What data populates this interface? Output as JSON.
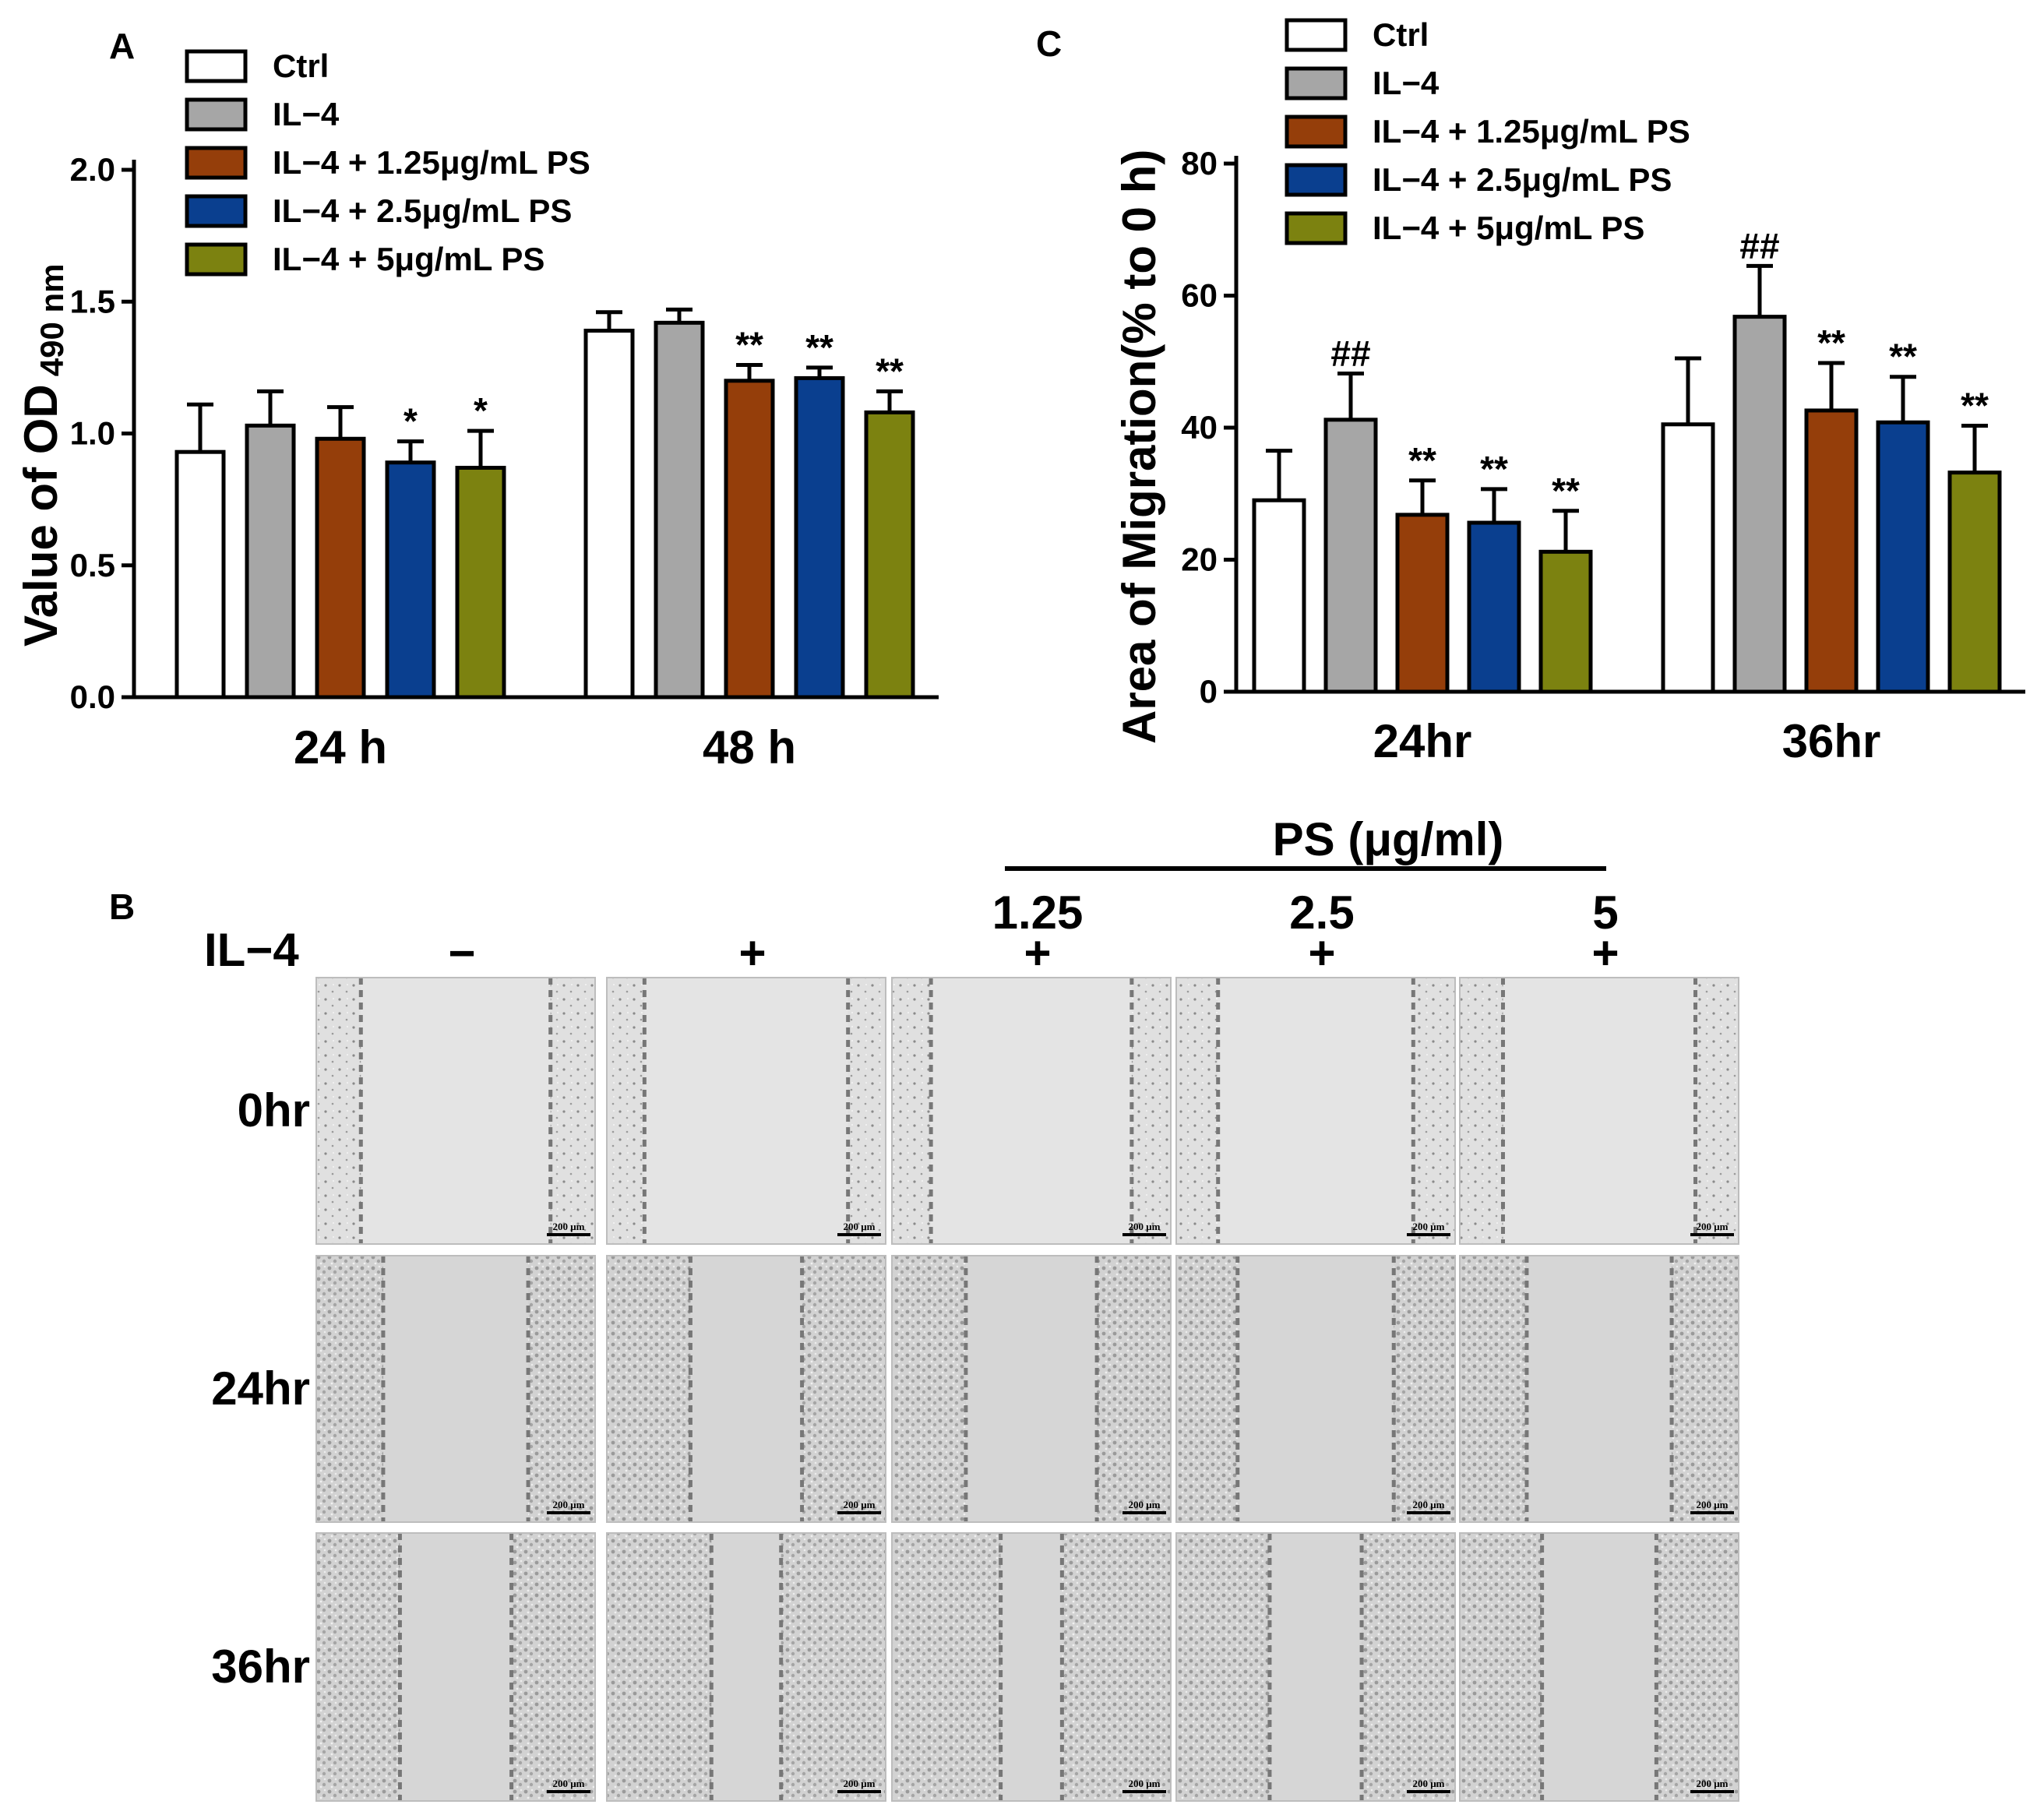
{
  "panel_a": {
    "letter": "A",
    "chart_data": {
      "type": "bar",
      "title": "",
      "ylabel_main": "Value of OD",
      "ylabel_sub": "490 nm",
      "xlabel": "",
      "ylim": [
        0,
        2.0
      ],
      "yticks": [
        "0.0",
        "0.5",
        "1.0",
        "1.5",
        "2.0"
      ],
      "categories": [
        "24 h",
        "48 h"
      ],
      "series": [
        {
          "name": "Ctrl",
          "color": "#ffffff",
          "values": [
            0.93,
            1.39
          ],
          "errors": [
            0.18,
            0.07
          ],
          "sig": [
            "",
            ""
          ]
        },
        {
          "name": "IL−4",
          "color": "#a6a6a6",
          "values": [
            1.03,
            1.42
          ],
          "errors": [
            0.13,
            0.05
          ],
          "sig": [
            "",
            ""
          ]
        },
        {
          "name": "IL−4 + 1.25μg/mL PS",
          "color": "#953e0a",
          "values": [
            0.98,
            1.2
          ],
          "errors": [
            0.12,
            0.06
          ],
          "sig": [
            "",
            "**"
          ]
        },
        {
          "name": "IL−4 + 2.5μg/mL PS",
          "color": "#0a3f8f",
          "values": [
            0.89,
            1.21
          ],
          "errors": [
            0.08,
            0.04
          ],
          "sig": [
            "*",
            "**"
          ]
        },
        {
          "name": "IL−4 + 5μg/mL PS",
          "color": "#7c8210",
          "values": [
            0.87,
            1.08
          ],
          "errors": [
            0.14,
            0.08
          ],
          "sig": [
            "*",
            "**"
          ]
        }
      ]
    }
  },
  "panel_c": {
    "letter": "C",
    "chart_data": {
      "type": "bar",
      "title": "",
      "ylabel": "Area of Migration(% to 0 h)",
      "xlabel": "",
      "ylim": [
        0,
        80
      ],
      "yticks": [
        "0",
        "20",
        "40",
        "60",
        "80"
      ],
      "categories": [
        "24hr",
        "36hr"
      ],
      "series": [
        {
          "name": "Ctrl",
          "color": "#ffffff",
          "values": [
            29,
            40.5
          ],
          "errors": [
            7.5,
            10
          ],
          "sig": [
            "",
            ""
          ]
        },
        {
          "name": "IL−4",
          "color": "#a6a6a6",
          "values": [
            41.2,
            56.8
          ],
          "errors": [
            7,
            7.7
          ],
          "sig": [
            "##",
            "##"
          ]
        },
        {
          "name": "IL−4 + 1.25μg/mL PS",
          "color": "#953e0a",
          "values": [
            26.8,
            42.6
          ],
          "errors": [
            5.2,
            7.2
          ],
          "sig": [
            "**",
            "**"
          ]
        },
        {
          "name": "IL−4 + 2.5μg/mL PS",
          "color": "#0a3f8f",
          "values": [
            25.6,
            40.8
          ],
          "errors": [
            5.1,
            6.9
          ],
          "sig": [
            "**",
            "**"
          ]
        },
        {
          "name": "IL−4 + 5μg/mL PS",
          "color": "#7c8210",
          "values": [
            21.2,
            33.2
          ],
          "errors": [
            6.2,
            7.1
          ],
          "sig": [
            "**",
            "**"
          ]
        }
      ]
    }
  },
  "panel_b": {
    "letter": "B",
    "ps_header": "PS (μg/ml)",
    "il4_label": "IL−4",
    "columns": [
      {
        "ps": "",
        "il4": "−"
      },
      {
        "ps": "",
        "il4": "+"
      },
      {
        "ps": "1.25",
        "il4": "+"
      },
      {
        "ps": "2.5",
        "il4": "+"
      },
      {
        "ps": "5",
        "il4": "+"
      }
    ],
    "rows": [
      "0hr",
      "24hr",
      "36hr"
    ],
    "scale_bar": "200 μm",
    "wound_gap": [
      [
        0.68,
        0.73,
        0.72,
        0.7,
        0.69
      ],
      [
        0.52,
        0.4,
        0.47,
        0.56,
        0.52
      ],
      [
        0.4,
        0.25,
        0.22,
        0.33,
        0.41
      ]
    ]
  }
}
